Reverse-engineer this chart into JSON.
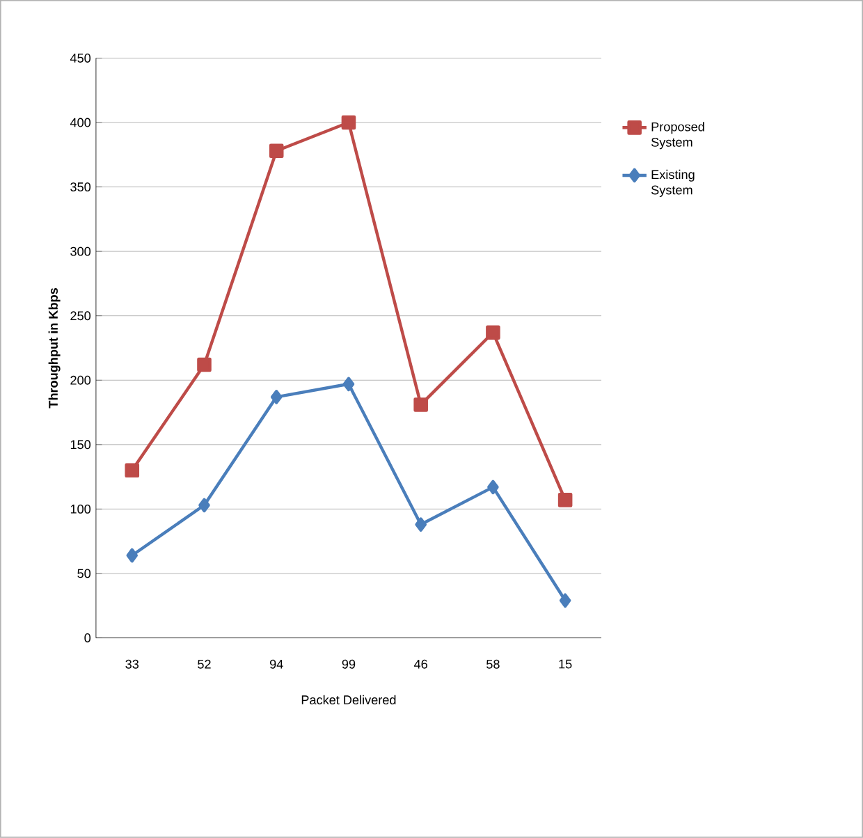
{
  "chart_data": {
    "type": "line",
    "xlabel": "Packet Delivered",
    "ylabel": "Throughput  in Kbps",
    "categories": [
      "33",
      "52",
      "94",
      "99",
      "46",
      "58",
      "15"
    ],
    "series": [
      {
        "name": "Proposed System",
        "color": "#be4b48",
        "marker": "square",
        "values": [
          130,
          212,
          378,
          400,
          181,
          237,
          107
        ]
      },
      {
        "name": "Existing System",
        "color": "#4a7ebb",
        "marker": "diamond",
        "values": [
          64,
          103,
          187,
          197,
          88,
          117,
          29
        ]
      }
    ],
    "ylim": [
      0,
      450
    ],
    "yticks": [
      0,
      50,
      100,
      150,
      200,
      250,
      300,
      350,
      400,
      450
    ],
    "grid": "y",
    "legend": "right",
    "line_style": "solid"
  }
}
